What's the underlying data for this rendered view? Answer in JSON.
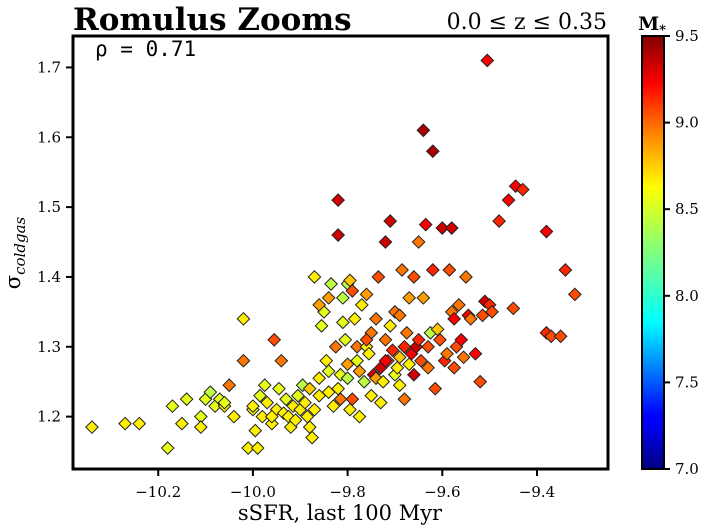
{
  "chart_data": {
    "type": "scatter",
    "title": "Romulus Zooms",
    "subtitle": "0.0 ≤ z ≤ 0.35",
    "annotation": "ρ = 0.71",
    "xlabel": "sSFR, last 100 Myr",
    "ylabel": "σ_coldgas",
    "ylabel_main": "σ",
    "ylabel_sub": "coldgas",
    "xlim": [
      -10.38,
      -9.25
    ],
    "ylim": [
      1.125,
      1.745
    ],
    "xticks": [
      -10.2,
      -10.0,
      -9.8,
      -9.6,
      -9.4
    ],
    "xtick_labels": [
      "−10.2",
      "−10.0",
      "−9.8",
      "−9.6",
      "−9.4"
    ],
    "yticks": [
      1.2,
      1.3,
      1.4,
      1.5,
      1.6,
      1.7
    ],
    "ytick_labels": [
      "1.2",
      "1.3",
      "1.4",
      "1.5",
      "1.6",
      "1.7"
    ],
    "marker": "diamond",
    "grid": false,
    "colorbar": {
      "label": "M_*",
      "colormap": "jet",
      "range": [
        7.0,
        9.5
      ],
      "ticks": [
        7.0,
        7.5,
        8.0,
        8.5,
        9.0,
        9.5
      ],
      "tick_labels": [
        "7.0",
        "7.5",
        "8.0",
        "8.5",
        "9.0",
        "9.5"
      ]
    },
    "colors": {
      "jet_stops": [
        "#00007f",
        "#0000ff",
        "#007fff",
        "#00ffff",
        "#7fff7f",
        "#ffff00",
        "#ff7f00",
        "#ff0000",
        "#7f0000"
      ]
    },
    "points": [
      [
        -10.34,
        1.185,
        8.6
      ],
      [
        -10.27,
        1.19,
        8.6
      ],
      [
        -10.24,
        1.19,
        8.6
      ],
      [
        -10.18,
        1.155,
        8.5
      ],
      [
        -10.17,
        1.215,
        8.5
      ],
      [
        -10.15,
        1.19,
        8.6
      ],
      [
        -10.14,
        1.225,
        8.5
      ],
      [
        -10.11,
        1.2,
        8.5
      ],
      [
        -10.11,
        1.185,
        8.6
      ],
      [
        -10.1,
        1.225,
        8.5
      ],
      [
        -10.09,
        1.235,
        8.4
      ],
      [
        -10.08,
        1.215,
        8.5
      ],
      [
        -10.07,
        1.225,
        8.5
      ],
      [
        -10.06,
        1.215,
        8.6
      ],
      [
        -10.06,
        1.22,
        8.5
      ],
      [
        -10.05,
        1.245,
        8.9
      ],
      [
        -10.04,
        1.2,
        8.6
      ],
      [
        -10.02,
        1.34,
        8.6
      ],
      [
        -10.02,
        1.28,
        8.9
      ],
      [
        -10.01,
        1.155,
        8.6
      ],
      [
        -10.0,
        1.21,
        8.5
      ],
      [
        -9.995,
        1.18,
        8.6
      ],
      [
        -9.99,
        1.155,
        8.6
      ],
      [
        -9.985,
        1.23,
        8.5
      ],
      [
        -9.98,
        1.2,
        8.6
      ],
      [
        -9.975,
        1.245,
        8.5
      ],
      [
        -9.97,
        1.22,
        8.6
      ],
      [
        -9.96,
        1.19,
        8.6
      ],
      [
        -9.955,
        1.31,
        9.0
      ],
      [
        -9.95,
        1.21,
        8.6
      ],
      [
        -9.945,
        1.24,
        8.5
      ],
      [
        -9.94,
        1.28,
        8.9
      ],
      [
        -9.935,
        1.205,
        8.6
      ],
      [
        -9.93,
        1.225,
        8.5
      ],
      [
        -9.925,
        1.2,
        8.6
      ],
      [
        -9.92,
        1.185,
        8.6
      ],
      [
        -9.915,
        1.215,
        8.6
      ],
      [
        -9.91,
        1.195,
        8.6
      ],
      [
        -9.905,
        1.23,
        8.5
      ],
      [
        -9.9,
        1.21,
        8.6
      ],
      [
        -9.895,
        1.245,
        8.4
      ],
      [
        -9.89,
        1.22,
        8.6
      ],
      [
        -9.885,
        1.2,
        8.6
      ],
      [
        -9.88,
        1.185,
        8.6
      ],
      [
        -9.875,
        1.17,
        8.6
      ],
      [
        -9.87,
        1.21,
        8.6
      ],
      [
        -9.87,
        1.4,
        8.6
      ],
      [
        -9.86,
        1.255,
        8.6
      ],
      [
        -9.86,
        1.23,
        8.6
      ],
      [
        -9.855,
        1.33,
        8.5
      ],
      [
        -9.85,
        1.35,
        8.5
      ],
      [
        -9.845,
        1.28,
        8.6
      ],
      [
        -9.84,
        1.265,
        8.5
      ],
      [
        -9.84,
        1.37,
        8.8
      ],
      [
        -9.835,
        1.39,
        8.4
      ],
      [
        -9.83,
        1.215,
        8.6
      ],
      [
        -9.825,
        1.3,
        8.9
      ],
      [
        -9.82,
        1.24,
        8.6
      ],
      [
        -9.82,
        1.51,
        9.3
      ],
      [
        -9.82,
        1.46,
        9.3
      ],
      [
        -9.815,
        1.26,
        8.5
      ],
      [
        -9.81,
        1.37,
        8.4
      ],
      [
        -9.81,
        1.335,
        8.5
      ],
      [
        -9.805,
        1.31,
        8.5
      ],
      [
        -9.8,
        1.275,
        8.8
      ],
      [
        -9.8,
        1.255,
        8.4
      ],
      [
        -9.8,
        1.39,
        8.4
      ],
      [
        -9.795,
        1.21,
        8.6
      ],
      [
        -9.79,
        1.225,
        9.0
      ],
      [
        -9.79,
        1.38,
        9.0
      ],
      [
        -9.785,
        1.34,
        8.6
      ],
      [
        -9.78,
        1.3,
        8.9
      ],
      [
        -9.78,
        1.28,
        8.5
      ],
      [
        -9.775,
        1.2,
        8.6
      ],
      [
        -9.77,
        1.36,
        8.6
      ],
      [
        -9.765,
        1.25,
        8.4
      ],
      [
        -9.76,
        1.3,
        8.6
      ],
      [
        -9.76,
        1.375,
        8.8
      ],
      [
        -9.755,
        1.29,
        8.6
      ],
      [
        -9.75,
        1.23,
        8.6
      ],
      [
        -9.75,
        1.32,
        8.9
      ],
      [
        -9.745,
        1.26,
        9.3
      ],
      [
        -9.74,
        1.34,
        8.9
      ],
      [
        -9.74,
        1.255,
        8.8
      ],
      [
        -9.735,
        1.4,
        9.0
      ],
      [
        -9.73,
        1.22,
        8.6
      ],
      [
        -9.73,
        1.27,
        9.3
      ],
      [
        -9.725,
        1.25,
        8.6
      ],
      [
        -9.72,
        1.45,
        9.3
      ],
      [
        -9.72,
        1.31,
        8.9
      ],
      [
        -9.715,
        1.28,
        9.0
      ],
      [
        -9.71,
        1.48,
        9.3
      ],
      [
        -9.71,
        1.33,
        8.6
      ],
      [
        -9.705,
        1.295,
        9.1
      ],
      [
        -9.7,
        1.26,
        8.5
      ],
      [
        -9.7,
        1.35,
        8.9
      ],
      [
        -9.695,
        1.27,
        8.6
      ],
      [
        -9.69,
        1.285,
        8.7
      ],
      [
        -9.69,
        1.245,
        8.6
      ],
      [
        -9.685,
        1.41,
        8.9
      ],
      [
        -9.68,
        1.225,
        8.9
      ],
      [
        -9.68,
        1.3,
        9.1
      ],
      [
        -9.675,
        1.32,
        8.9
      ],
      [
        -9.67,
        1.275,
        8.6
      ],
      [
        -9.67,
        1.37,
        8.8
      ],
      [
        -9.665,
        1.29,
        9.2
      ],
      [
        -9.66,
        1.26,
        9.3
      ],
      [
        -9.66,
        1.4,
        9.0
      ],
      [
        -9.655,
        1.3,
        9.3
      ],
      [
        -9.65,
        1.31,
        9.1
      ],
      [
        -9.65,
        1.45,
        8.9
      ],
      [
        -9.645,
        1.28,
        9.0
      ],
      [
        -9.64,
        1.37,
        8.8
      ],
      [
        -9.64,
        1.61,
        9.4
      ],
      [
        -9.635,
        1.475,
        9.2
      ],
      [
        -9.63,
        1.3,
        9.0
      ],
      [
        -9.63,
        1.27,
        8.9
      ],
      [
        -9.625,
        1.32,
        8.4
      ],
      [
        -9.62,
        1.41,
        9.1
      ],
      [
        -9.62,
        1.58,
        9.4
      ],
      [
        -9.615,
        1.24,
        9.0
      ],
      [
        -9.61,
        1.325,
        8.7
      ],
      [
        -9.605,
        1.31,
        9.0
      ],
      [
        -9.6,
        1.47,
        9.3
      ],
      [
        -9.595,
        1.28,
        9.1
      ],
      [
        -9.59,
        1.29,
        8.9
      ],
      [
        -9.585,
        1.41,
        9.0
      ],
      [
        -9.58,
        1.35,
        8.9
      ],
      [
        -9.58,
        1.47,
        9.3
      ],
      [
        -9.575,
        1.27,
        9.0
      ],
      [
        -9.57,
        1.3,
        9.0
      ],
      [
        -9.565,
        1.36,
        8.9
      ],
      [
        -9.56,
        1.31,
        9.2
      ],
      [
        -9.555,
        1.285,
        8.9
      ],
      [
        -9.55,
        1.4,
        8.9
      ],
      [
        -9.545,
        1.345,
        9.2
      ],
      [
        -9.54,
        1.34,
        8.9
      ],
      [
        -9.53,
        1.29,
        9.2
      ],
      [
        -9.52,
        1.25,
        9.0
      ],
      [
        -9.515,
        1.345,
        9.0
      ],
      [
        -9.51,
        1.365,
        9.3
      ],
      [
        -9.505,
        1.71,
        9.2
      ],
      [
        -9.5,
        1.36,
        9.1
      ],
      [
        -9.495,
        1.35,
        9.0
      ],
      [
        -9.48,
        1.48,
        9.1
      ],
      [
        -9.46,
        1.51,
        9.2
      ],
      [
        -9.45,
        1.355,
        9.0
      ],
      [
        -9.445,
        1.53,
        9.2
      ],
      [
        -9.43,
        1.525,
        9.1
      ],
      [
        -9.38,
        1.465,
        9.2
      ],
      [
        -9.38,
        1.32,
        9.1
      ],
      [
        -9.37,
        1.315,
        9.0
      ],
      [
        -9.35,
        1.315,
        9.0
      ],
      [
        -9.34,
        1.41,
        9.1
      ],
      [
        -9.32,
        1.375,
        9.0
      ],
      [
        -9.575,
        1.34,
        9.2
      ],
      [
        -9.69,
        1.345,
        8.9
      ],
      [
        -9.72,
        1.28,
        9.2
      ],
      [
        -9.76,
        1.31,
        9.0
      ],
      [
        -9.775,
        1.265,
        8.8
      ],
      [
        -9.795,
        1.395,
        8.7
      ],
      [
        -9.84,
        1.235,
        8.6
      ],
      [
        -9.815,
        1.225,
        8.9
      ],
      [
        -9.86,
        1.36,
        8.8
      ],
      [
        -9.88,
        1.24,
        8.7
      ],
      [
        -9.96,
        1.2,
        8.6
      ],
      [
        -10.0,
        1.215,
        8.6
      ]
    ]
  }
}
